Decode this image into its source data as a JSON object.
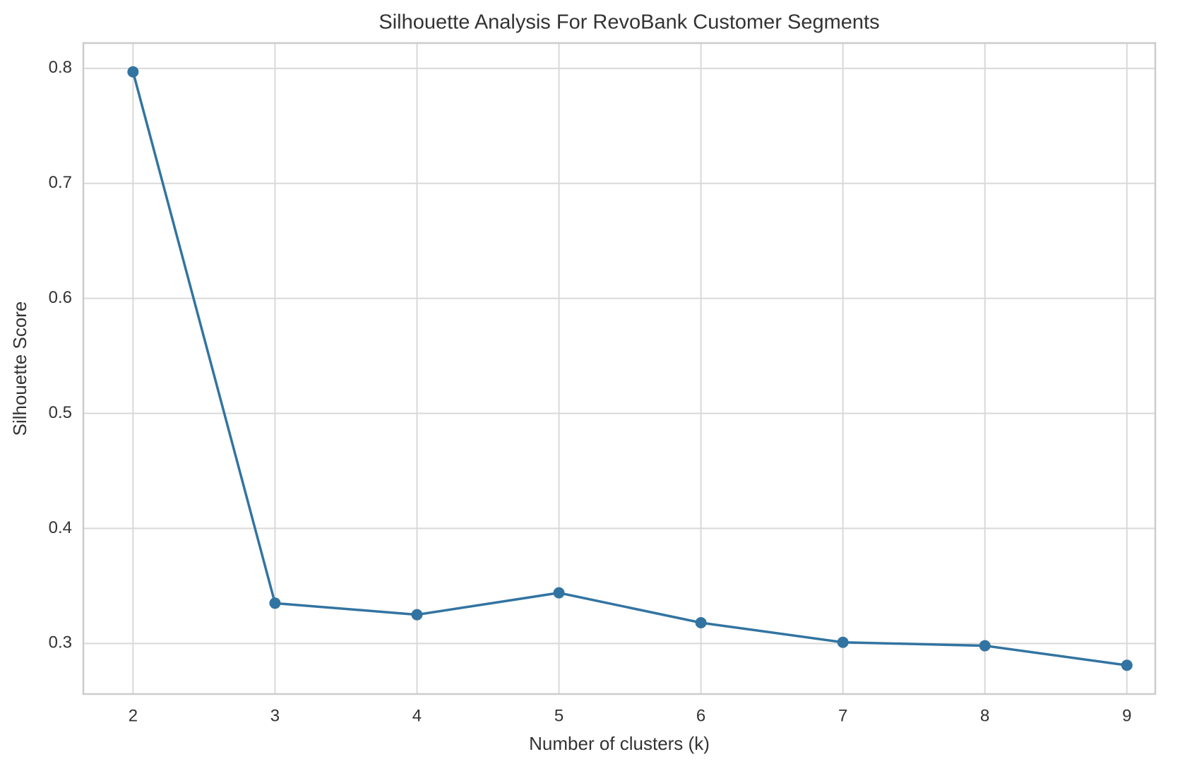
{
  "chart_data": {
    "type": "line",
    "title": "Silhouette Analysis For RevoBank Customer Segments",
    "x_label": "Number of clusters (k)",
    "y_label": "Silhouette Score",
    "x": [
      2,
      3,
      4,
      5,
      6,
      7,
      8,
      9
    ],
    "series": [
      {
        "name": "Silhouette Score",
        "color": "#3274a1",
        "values": [
          0.797,
          0.335,
          0.325,
          0.344,
          0.318,
          0.301,
          0.298,
          0.281
        ]
      }
    ],
    "xlim": [
      1.65,
      9.2
    ],
    "ylim": [
      0.256,
      0.822
    ],
    "xticks": [
      2,
      3,
      4,
      5,
      6,
      7,
      8,
      9
    ],
    "yticks": [
      0.3,
      0.4,
      0.5,
      0.6,
      0.7,
      0.8
    ],
    "grid": true,
    "markers": true
  }
}
